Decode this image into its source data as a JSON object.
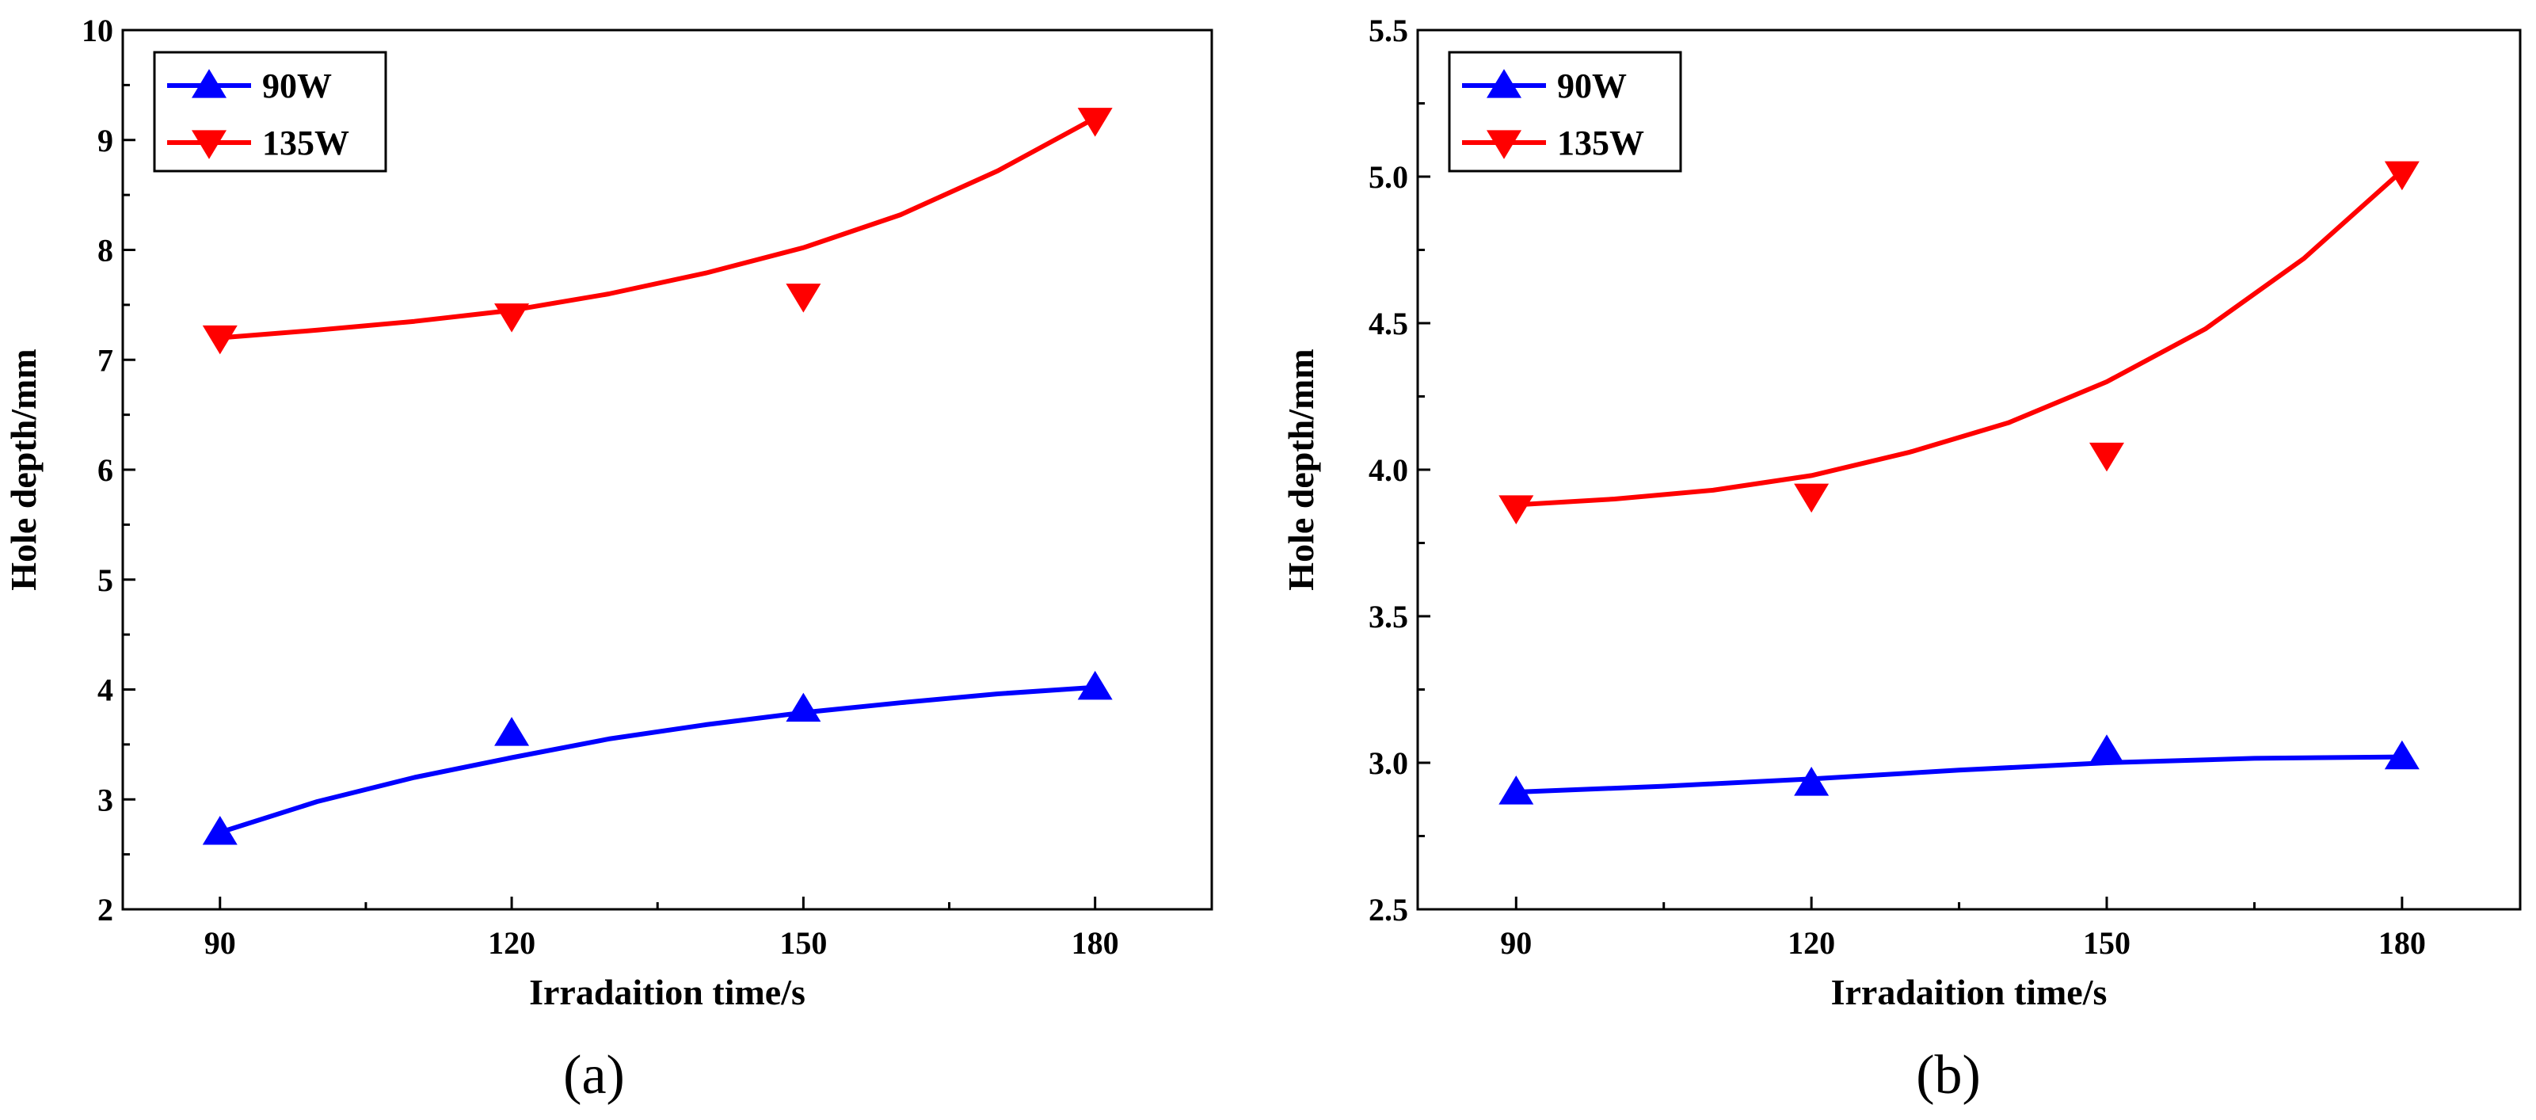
{
  "chart_data": [
    {
      "type": "scatter",
      "panel_label": "(a)",
      "title": "",
      "xlabel": "Irradaition time/s",
      "ylabel": "Hole depth/mm",
      "xlim": [
        80,
        192
      ],
      "ylim": [
        2,
        10
      ],
      "xticks": [
        90,
        120,
        150,
        180
      ],
      "xtick_labels": [
        "90",
        "120",
        "150",
        "180"
      ],
      "yticks": [
        2,
        3,
        4,
        5,
        6,
        7,
        8,
        9,
        10
      ],
      "ytick_labels": [
        "2",
        "3",
        "4",
        "5",
        "6",
        "7",
        "8",
        "9",
        "10"
      ],
      "grid": false,
      "legend_position": "top-left",
      "series": [
        {
          "name": "90W",
          "color": "#0000ff",
          "marker": "triangle-up",
          "x": [
            90,
            120,
            150,
            180
          ],
          "y": [
            2.7,
            3.6,
            3.82,
            4.02
          ],
          "fit_x": [
            90,
            100,
            110,
            120,
            130,
            140,
            150,
            160,
            170,
            180
          ],
          "fit_y": [
            2.7,
            2.98,
            3.2,
            3.38,
            3.55,
            3.68,
            3.79,
            3.88,
            3.96,
            4.02
          ]
        },
        {
          "name": "135W",
          "color": "#ff0000",
          "marker": "triangle-down",
          "x": [
            90,
            120,
            150,
            180
          ],
          "y": [
            7.2,
            7.4,
            7.58,
            9.18
          ],
          "fit_x": [
            90,
            100,
            110,
            120,
            130,
            140,
            150,
            160,
            170,
            180
          ],
          "fit_y": [
            7.2,
            7.27,
            7.35,
            7.45,
            7.6,
            7.79,
            8.02,
            8.32,
            8.72,
            9.2
          ]
        }
      ]
    },
    {
      "type": "scatter",
      "panel_label": "(b)",
      "title": "",
      "xlabel": "Irradaition time/s",
      "ylabel": "Hole depth/mm",
      "xlim": [
        80,
        192
      ],
      "ylim": [
        2.5,
        5.5
      ],
      "xticks": [
        90,
        120,
        150,
        180
      ],
      "xtick_labels": [
        "90",
        "120",
        "150",
        "180"
      ],
      "yticks": [
        2.5,
        3.0,
        3.5,
        4.0,
        4.5,
        5.0,
        5.5
      ],
      "ytick_labels": [
        "2.5",
        "3.0",
        "3.5",
        "4.0",
        "4.5",
        "5.0",
        "5.5"
      ],
      "grid": false,
      "legend_position": "top-left",
      "series": [
        {
          "name": "90W",
          "color": "#0000ff",
          "marker": "triangle-up",
          "x": [
            90,
            120,
            150,
            180
          ],
          "y": [
            2.9,
            2.93,
            3.04,
            3.02
          ],
          "fit_x": [
            90,
            105,
            120,
            135,
            150,
            165,
            180
          ],
          "fit_y": [
            2.9,
            2.92,
            2.945,
            2.975,
            3.0,
            3.015,
            3.02
          ]
        },
        {
          "name": "135W",
          "color": "#ff0000",
          "marker": "triangle-down",
          "x": [
            90,
            120,
            150,
            180
          ],
          "y": [
            3.87,
            3.91,
            4.05,
            5.01
          ],
          "fit_x": [
            90,
            100,
            110,
            120,
            130,
            140,
            150,
            160,
            170,
            180
          ],
          "fit_y": [
            3.88,
            3.9,
            3.93,
            3.98,
            4.06,
            4.16,
            4.3,
            4.48,
            4.72,
            5.02
          ]
        }
      ]
    }
  ]
}
